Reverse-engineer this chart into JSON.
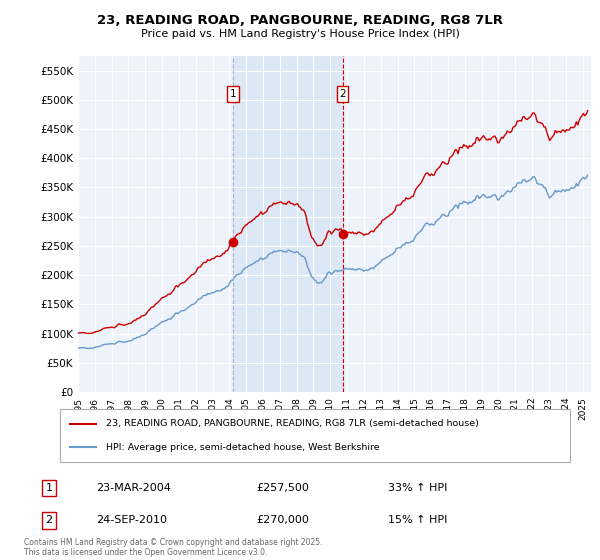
{
  "title": "23, READING ROAD, PANGBOURNE, READING, RG8 7LR",
  "subtitle": "Price paid vs. HM Land Registry's House Price Index (HPI)",
  "legend_line1": "23, READING ROAD, PANGBOURNE, READING, RG8 7LR (semi-detached house)",
  "legend_line2": "HPI: Average price, semi-detached house, West Berkshire",
  "sale1_label": "1",
  "sale1_date": "23-MAR-2004",
  "sale1_price": "£257,500",
  "sale1_hpi": "33% ↑ HPI",
  "sale1_x": 2004.22,
  "sale1_y": 257500,
  "sale2_label": "2",
  "sale2_date": "24-SEP-2010",
  "sale2_price": "£270,000",
  "sale2_hpi": "15% ↑ HPI",
  "sale2_x": 2010.73,
  "sale2_y": 270000,
  "vline1_x": 2004.22,
  "vline2_x": 2010.73,
  "ylim_min": 0,
  "ylim_max": 575000,
  "yticks": [
    0,
    50000,
    100000,
    150000,
    200000,
    250000,
    300000,
    350000,
    400000,
    450000,
    500000,
    550000
  ],
  "ytick_labels": [
    "£0",
    "£50K",
    "£100K",
    "£150K",
    "£200K",
    "£250K",
    "£300K",
    "£350K",
    "£400K",
    "£450K",
    "£500K",
    "£550K"
  ],
  "red_color": "#cc0000",
  "blue_color": "#6699cc",
  "vline1_color": "#aaaacc",
  "vline2_color": "#cc0000",
  "shade_color": "#dce8f5",
  "background_color": "#ffffff",
  "plot_bg_color": "#eef2fb",
  "grid_color": "#ffffff",
  "footnote": "Contains HM Land Registry data © Crown copyright and database right 2025.\nThis data is licensed under the Open Government Licence v3.0.",
  "xmin": 1995.0,
  "xmax": 2025.5
}
